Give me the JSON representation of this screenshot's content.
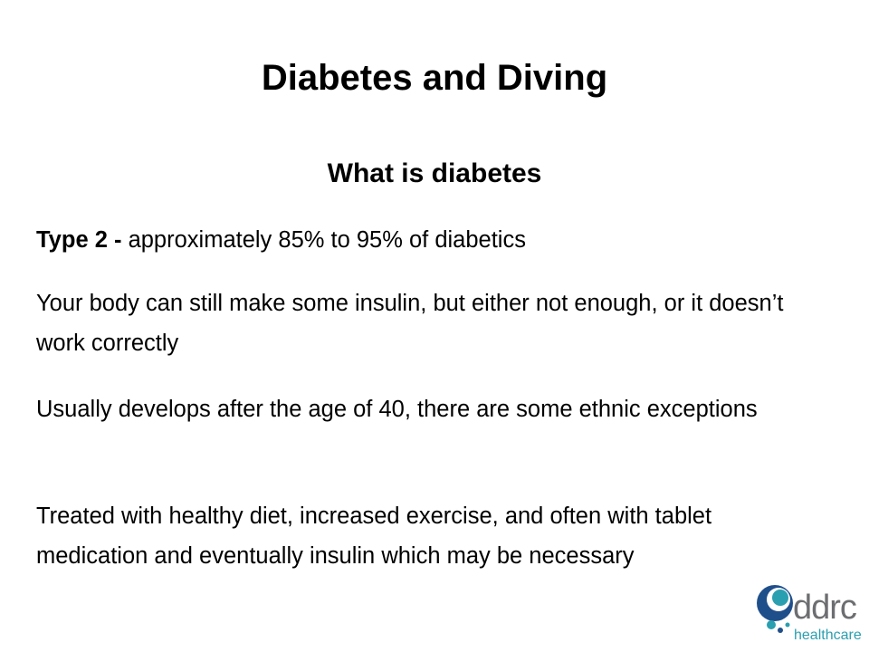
{
  "slide": {
    "title": "Diabetes and Diving",
    "subtitle": "What is diabetes",
    "paragraphs": [
      {
        "lead": "Type 2 -",
        "text": "approximately 85% to 95% of diabetics"
      },
      {
        "text": "Your body can still make some insulin, but either not enough, or it doesn’t work correctly"
      },
      {
        "text": "Usually develops after the age of 40, there are some ethnic exceptions"
      },
      {
        "text": "Treated with healthy diet, increased exercise, and often with tablet medication and eventually insulin which may be necessary"
      }
    ],
    "logo": {
      "name": "ddrc",
      "tagline": "healthcare"
    }
  }
}
